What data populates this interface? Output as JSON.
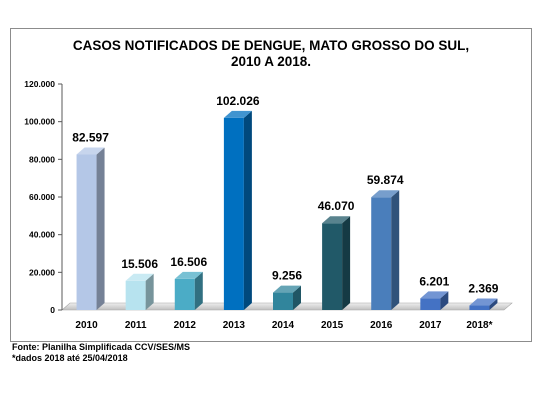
{
  "chart_data": {
    "type": "bar",
    "title_lines": [
      "CASOS NOTIFICADOS  DE DENGUE, MATO GROSSO DO SUL,",
      "2010 A 2018."
    ],
    "categories": [
      "2010",
      "2011",
      "2012",
      "2013",
      "2014",
      "2015",
      "2016",
      "2017",
      "2018*"
    ],
    "values": [
      82597,
      15506,
      16506,
      102026,
      9256,
      46070,
      59874,
      6201,
      2369
    ],
    "value_labels": [
      "82.597",
      "15.506",
      "16.506",
      "102.026",
      "9.256",
      "46.070",
      "59.874",
      "6.201",
      "2.369"
    ],
    "bar_colors": [
      "#b4c7e7",
      "#b7e3ef",
      "#4bacc6",
      "#0070c0",
      "#31859c",
      "#215968",
      "#4a7ebb",
      "#4472c4",
      "#4472c4"
    ],
    "yticks": [
      0,
      20000,
      40000,
      60000,
      80000,
      100000,
      120000
    ],
    "ytick_labels": [
      "0",
      "20.000",
      "40.000",
      "60.000",
      "80.000",
      "100.000",
      "120.000"
    ],
    "ylim": [
      0,
      120000
    ],
    "grid": false,
    "legend": "none"
  },
  "footnotes": {
    "source": "Fonte: Planilha Simplificada CCV/SES/MS",
    "date": "*dados 2018 até 25/04/2018"
  }
}
